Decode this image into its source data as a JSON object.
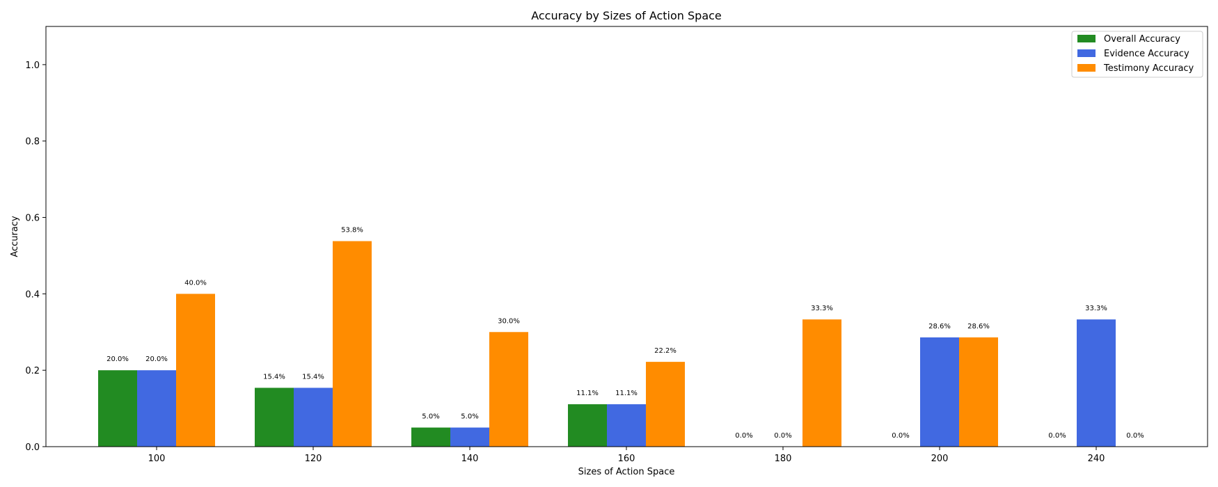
{
  "chart_data": {
    "type": "bar",
    "title": "Accuracy by Sizes of Action Space",
    "xlabel": "Sizes of Action Space",
    "ylabel": "Accuracy",
    "ylim": [
      0,
      1.1
    ],
    "yticks": [
      "0.0",
      "0.2",
      "0.4",
      "0.6",
      "0.8",
      "1.0"
    ],
    "ytick_values": [
      0,
      0.2,
      0.4,
      0.6,
      0.8,
      1.0
    ],
    "categories": [
      "100",
      "120",
      "140",
      "160",
      "180",
      "200",
      "240"
    ],
    "legend_position": "top-right",
    "grid": false,
    "series": [
      {
        "name": "Overall Accuracy",
        "color": "#228B22",
        "values": [
          0.2,
          0.154,
          0.05,
          0.111,
          0.0,
          0.0,
          0.0
        ],
        "labels": [
          "20.0%",
          "15.4%",
          "5.0%",
          "11.1%",
          "0.0%",
          "0.0%",
          "0.0%"
        ]
      },
      {
        "name": "Evidence Accuracy",
        "color": "#4169E1",
        "values": [
          0.2,
          0.154,
          0.05,
          0.111,
          0.0,
          0.286,
          0.333
        ],
        "labels": [
          "20.0%",
          "15.4%",
          "5.0%",
          "11.1%",
          "0.0%",
          "28.6%",
          "33.3%"
        ]
      },
      {
        "name": "Testimony Accuracy",
        "color": "#FF8C00",
        "values": [
          0.4,
          0.538,
          0.3,
          0.222,
          0.333,
          0.286,
          0.0
        ],
        "labels": [
          "40.0%",
          "53.8%",
          "30.0%",
          "22.2%",
          "33.3%",
          "28.6%",
          "0.0%"
        ]
      }
    ]
  }
}
